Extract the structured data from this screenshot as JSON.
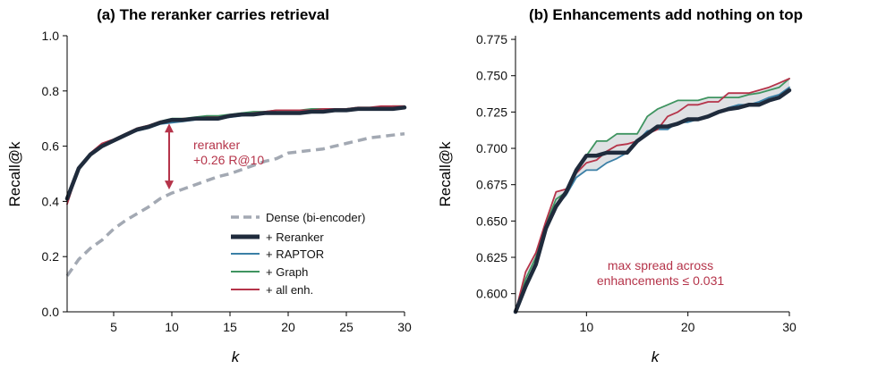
{
  "colors": {
    "dense": "#a3a9b3",
    "reranker": "#1f2b3c",
    "raptor": "#3a7fa6",
    "graph": "#3f9460",
    "all": "#b5344a",
    "fill": "#dfe1e4"
  },
  "chart_data": [
    {
      "type": "line",
      "title": "(a) The reranker carries retrieval",
      "xlabel": "k",
      "ylabel": "Recall@k",
      "xlim": [
        1,
        30
      ],
      "ylim": [
        0,
        1
      ],
      "xticks": [
        5,
        10,
        15,
        20,
        25,
        30
      ],
      "yticks": [
        0.0,
        0.2,
        0.4,
        0.6,
        0.8,
        1.0
      ],
      "ytick_labels": [
        "0.0",
        "0.2",
        "0.4",
        "0.6",
        "0.8",
        "1.0"
      ],
      "grid": false,
      "legend_position": "lower-right",
      "x": [
        1,
        2,
        3,
        4,
        5,
        6,
        7,
        8,
        9,
        10,
        11,
        12,
        13,
        14,
        15,
        16,
        17,
        18,
        19,
        20,
        21,
        22,
        23,
        24,
        25,
        26,
        27,
        28,
        29,
        30
      ],
      "series": [
        {
          "name": "Dense (bi-encoder)",
          "key": "dense",
          "style": "dashed",
          "values": [
            0.13,
            0.19,
            0.23,
            0.26,
            0.3,
            0.33,
            0.355,
            0.38,
            0.41,
            0.43,
            0.445,
            0.46,
            0.475,
            0.49,
            0.5,
            0.515,
            0.53,
            0.545,
            0.555,
            0.575,
            0.58,
            0.585,
            0.59,
            0.6,
            0.61,
            0.62,
            0.63,
            0.635,
            0.64,
            0.645
          ]
        },
        {
          "name": "+ Reranker",
          "key": "reranker",
          "style": "thick",
          "values": [
            0.41,
            0.52,
            0.57,
            0.6,
            0.62,
            0.64,
            0.66,
            0.67,
            0.685,
            0.695,
            0.695,
            0.7,
            0.7,
            0.7,
            0.71,
            0.715,
            0.715,
            0.72,
            0.72,
            0.72,
            0.72,
            0.725,
            0.725,
            0.73,
            0.73,
            0.735,
            0.735,
            0.735,
            0.735,
            0.74
          ]
        },
        {
          "name": "+ RAPTOR",
          "key": "raptor",
          "style": "solid",
          "values": [
            0.4,
            0.52,
            0.57,
            0.6,
            0.62,
            0.64,
            0.655,
            0.665,
            0.68,
            0.685,
            0.69,
            0.695,
            0.7,
            0.7,
            0.705,
            0.71,
            0.715,
            0.72,
            0.72,
            0.72,
            0.72,
            0.725,
            0.725,
            0.73,
            0.73,
            0.735,
            0.735,
            0.735,
            0.74,
            0.745
          ]
        },
        {
          "name": "+ Graph",
          "key": "graph",
          "style": "solid",
          "values": [
            0.4,
            0.525,
            0.575,
            0.605,
            0.625,
            0.645,
            0.665,
            0.675,
            0.69,
            0.7,
            0.7,
            0.705,
            0.71,
            0.71,
            0.715,
            0.72,
            0.725,
            0.725,
            0.73,
            0.73,
            0.73,
            0.735,
            0.735,
            0.735,
            0.735,
            0.74,
            0.74,
            0.74,
            0.745,
            0.745
          ]
        },
        {
          "name": "+ all enh.",
          "key": "all",
          "style": "solid",
          "values": [
            0.39,
            0.52,
            0.575,
            0.61,
            0.625,
            0.645,
            0.665,
            0.675,
            0.69,
            0.695,
            0.7,
            0.7,
            0.705,
            0.705,
            0.71,
            0.715,
            0.72,
            0.725,
            0.73,
            0.73,
            0.73,
            0.73,
            0.735,
            0.735,
            0.735,
            0.74,
            0.74,
            0.745,
            0.745,
            0.745
          ]
        }
      ],
      "annotation": {
        "text_line1": "reranker",
        "text_line2": "+0.26 R@10",
        "x": 10,
        "y_from": 0.43,
        "y_to": 0.695
      }
    },
    {
      "type": "line",
      "title": "(b) Enhancements add nothing on top",
      "xlabel": "k",
      "ylabel": "Recall@k",
      "xlim": [
        3,
        30
      ],
      "ylim": [
        0.5875,
        0.7775
      ],
      "xticks": [
        10,
        20,
        30
      ],
      "yticks": [
        0.6,
        0.625,
        0.65,
        0.675,
        0.7,
        0.725,
        0.75,
        0.775
      ],
      "ytick_labels": [
        "0.600",
        "0.625",
        "0.650",
        "0.675",
        "0.700",
        "0.725",
        "0.750",
        "0.775"
      ],
      "grid": false,
      "shaded_band": "min-max of enhancement series",
      "x": [
        3,
        4,
        5,
        6,
        7,
        8,
        9,
        10,
        11,
        12,
        13,
        14,
        15,
        16,
        17,
        18,
        19,
        20,
        21,
        22,
        23,
        24,
        25,
        26,
        27,
        28,
        29,
        30
      ],
      "series": [
        {
          "key": "reranker",
          "style": "thick",
          "values": [
            0.585,
            0.605,
            0.62,
            0.645,
            0.66,
            0.67,
            0.685,
            0.695,
            0.695,
            0.697,
            0.697,
            0.697,
            0.705,
            0.71,
            0.715,
            0.715,
            0.717,
            0.72,
            0.72,
            0.722,
            0.725,
            0.727,
            0.728,
            0.73,
            0.73,
            0.733,
            0.735,
            0.74
          ]
        },
        {
          "key": "raptor",
          "style": "solid",
          "values": [
            0.585,
            0.605,
            0.622,
            0.645,
            0.66,
            0.668,
            0.68,
            0.685,
            0.685,
            0.69,
            0.693,
            0.697,
            0.705,
            0.712,
            0.713,
            0.713,
            0.718,
            0.718,
            0.72,
            0.722,
            0.725,
            0.728,
            0.73,
            0.73,
            0.732,
            0.735,
            0.737,
            0.742
          ]
        },
        {
          "key": "graph",
          "style": "solid",
          "values": [
            0.585,
            0.61,
            0.625,
            0.648,
            0.665,
            0.67,
            0.685,
            0.695,
            0.705,
            0.705,
            0.71,
            0.71,
            0.71,
            0.722,
            0.727,
            0.73,
            0.733,
            0.733,
            0.733,
            0.735,
            0.735,
            0.735,
            0.735,
            0.737,
            0.738,
            0.74,
            0.742,
            0.748
          ]
        },
        {
          "key": "all",
          "style": "solid",
          "values": [
            0.585,
            0.615,
            0.628,
            0.65,
            0.67,
            0.672,
            0.683,
            0.69,
            0.692,
            0.698,
            0.702,
            0.703,
            0.705,
            0.71,
            0.713,
            0.722,
            0.725,
            0.73,
            0.73,
            0.732,
            0.732,
            0.738,
            0.738,
            0.738,
            0.74,
            0.742,
            0.745,
            0.748
          ]
        }
      ],
      "annotation": {
        "text_line1": "max spread across",
        "text_line2": "enhancements ≤ 0.031"
      }
    }
  ]
}
